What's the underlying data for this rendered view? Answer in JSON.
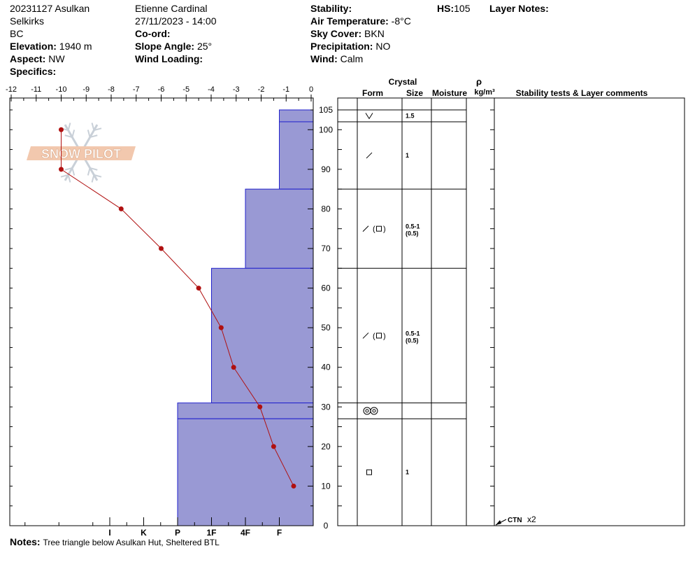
{
  "header": {
    "col1": [
      {
        "label": "",
        "value": "20231127 Asulkan"
      },
      {
        "label": "",
        "value": "Selkirks"
      },
      {
        "label": "",
        "value": "BC"
      },
      {
        "label": "Elevation:",
        "value": "1940 m"
      },
      {
        "label": "Aspect:",
        "value": "NW"
      },
      {
        "label": "Specifics:",
        "value": ""
      }
    ],
    "col2": [
      {
        "label": "",
        "value": "Etienne Cardinal"
      },
      {
        "label": "",
        "value": "27/11/2023 - 14:00"
      },
      {
        "label": "Co-ord:",
        "value": ""
      },
      {
        "label": "Slope Angle:",
        "value": "25°"
      },
      {
        "label": "Wind Loading:",
        "value": ""
      }
    ],
    "col3": [
      {
        "label": "Stability:",
        "value": ""
      },
      {
        "label": "Air Temperature:",
        "value": "-8°C"
      },
      {
        "label": "Sky Cover:",
        "value": "BKN"
      },
      {
        "label": "Precipitation:",
        "value": "NO"
      },
      {
        "label": "Wind:",
        "value": "Calm"
      }
    ],
    "hs_label": "HS:",
    "hs_value": "105",
    "layer_notes_label": "Layer Notes:"
  },
  "notes": {
    "label": "Notes:",
    "text": "Tree triangle below Asulkan Hut, Sheltered BTL"
  },
  "watermark": "SNOW PILOT",
  "table_headers": {
    "crystal": "Crystal",
    "form": "Form",
    "size": "Size",
    "moisture": "Moisture",
    "rho": "ρ",
    "density_unit": "kg/m³",
    "comments": "Stability tests & Layer comments"
  },
  "chart_data": {
    "type": "snow-profile",
    "temperature_axis": {
      "ticks": [
        "-12",
        "-11",
        "-10",
        "-9",
        "-8",
        "-7",
        "-6",
        "-5",
        "-4",
        "-3",
        "-2",
        "-1",
        "0"
      ],
      "range": [
        -12,
        0
      ]
    },
    "height_axis": {
      "labels": [
        "0",
        "10",
        "20",
        "30",
        "40",
        "50",
        "60",
        "70",
        "80",
        "90",
        "100",
        "105"
      ],
      "range": [
        0,
        105
      ]
    },
    "hardness_axis": {
      "labels": [
        "I",
        "K",
        "P",
        "1F",
        "4F",
        "F"
      ],
      "values": [
        6,
        5,
        4,
        3,
        2,
        1
      ]
    },
    "temperature_profile": [
      {
        "height": 100,
        "temp": -10.0
      },
      {
        "height": 90,
        "temp": -10.0
      },
      {
        "height": 80,
        "temp": -7.6
      },
      {
        "height": 70,
        "temp": -6.0
      },
      {
        "height": 60,
        "temp": -4.5
      },
      {
        "height": 50,
        "temp": -3.6
      },
      {
        "height": 40,
        "temp": -3.1
      },
      {
        "height": 30,
        "temp": -2.05
      },
      {
        "height": 20,
        "temp": -1.5
      },
      {
        "height": 10,
        "temp": -0.7
      }
    ],
    "layers": [
      {
        "top": 105,
        "bottom": 102,
        "hardness": 1.0,
        "form": "surface-hoar",
        "size": "1.5"
      },
      {
        "top": 102,
        "bottom": 85,
        "hardness": 1.0,
        "form": "decomposing",
        "size": "1"
      },
      {
        "top": 85,
        "bottom": 65,
        "hardness": 2.0,
        "form": "decomposing-faceted",
        "size": "0.5-1",
        "size2": "(0.5)"
      },
      {
        "top": 65,
        "bottom": 31,
        "hardness": 3.0,
        "form": "decomposing-faceted",
        "size": "0.5-1",
        "size2": "(0.5)"
      },
      {
        "top": 31,
        "bottom": 27,
        "hardness": 4.0,
        "form": "melt-freeze",
        "size": ""
      },
      {
        "top": 27,
        "bottom": 0,
        "hardness": 4.0,
        "form": "faceted",
        "size": "1"
      }
    ],
    "stability_tests": [
      {
        "height": 0,
        "result": "CTN",
        "count": "x2"
      }
    ]
  }
}
